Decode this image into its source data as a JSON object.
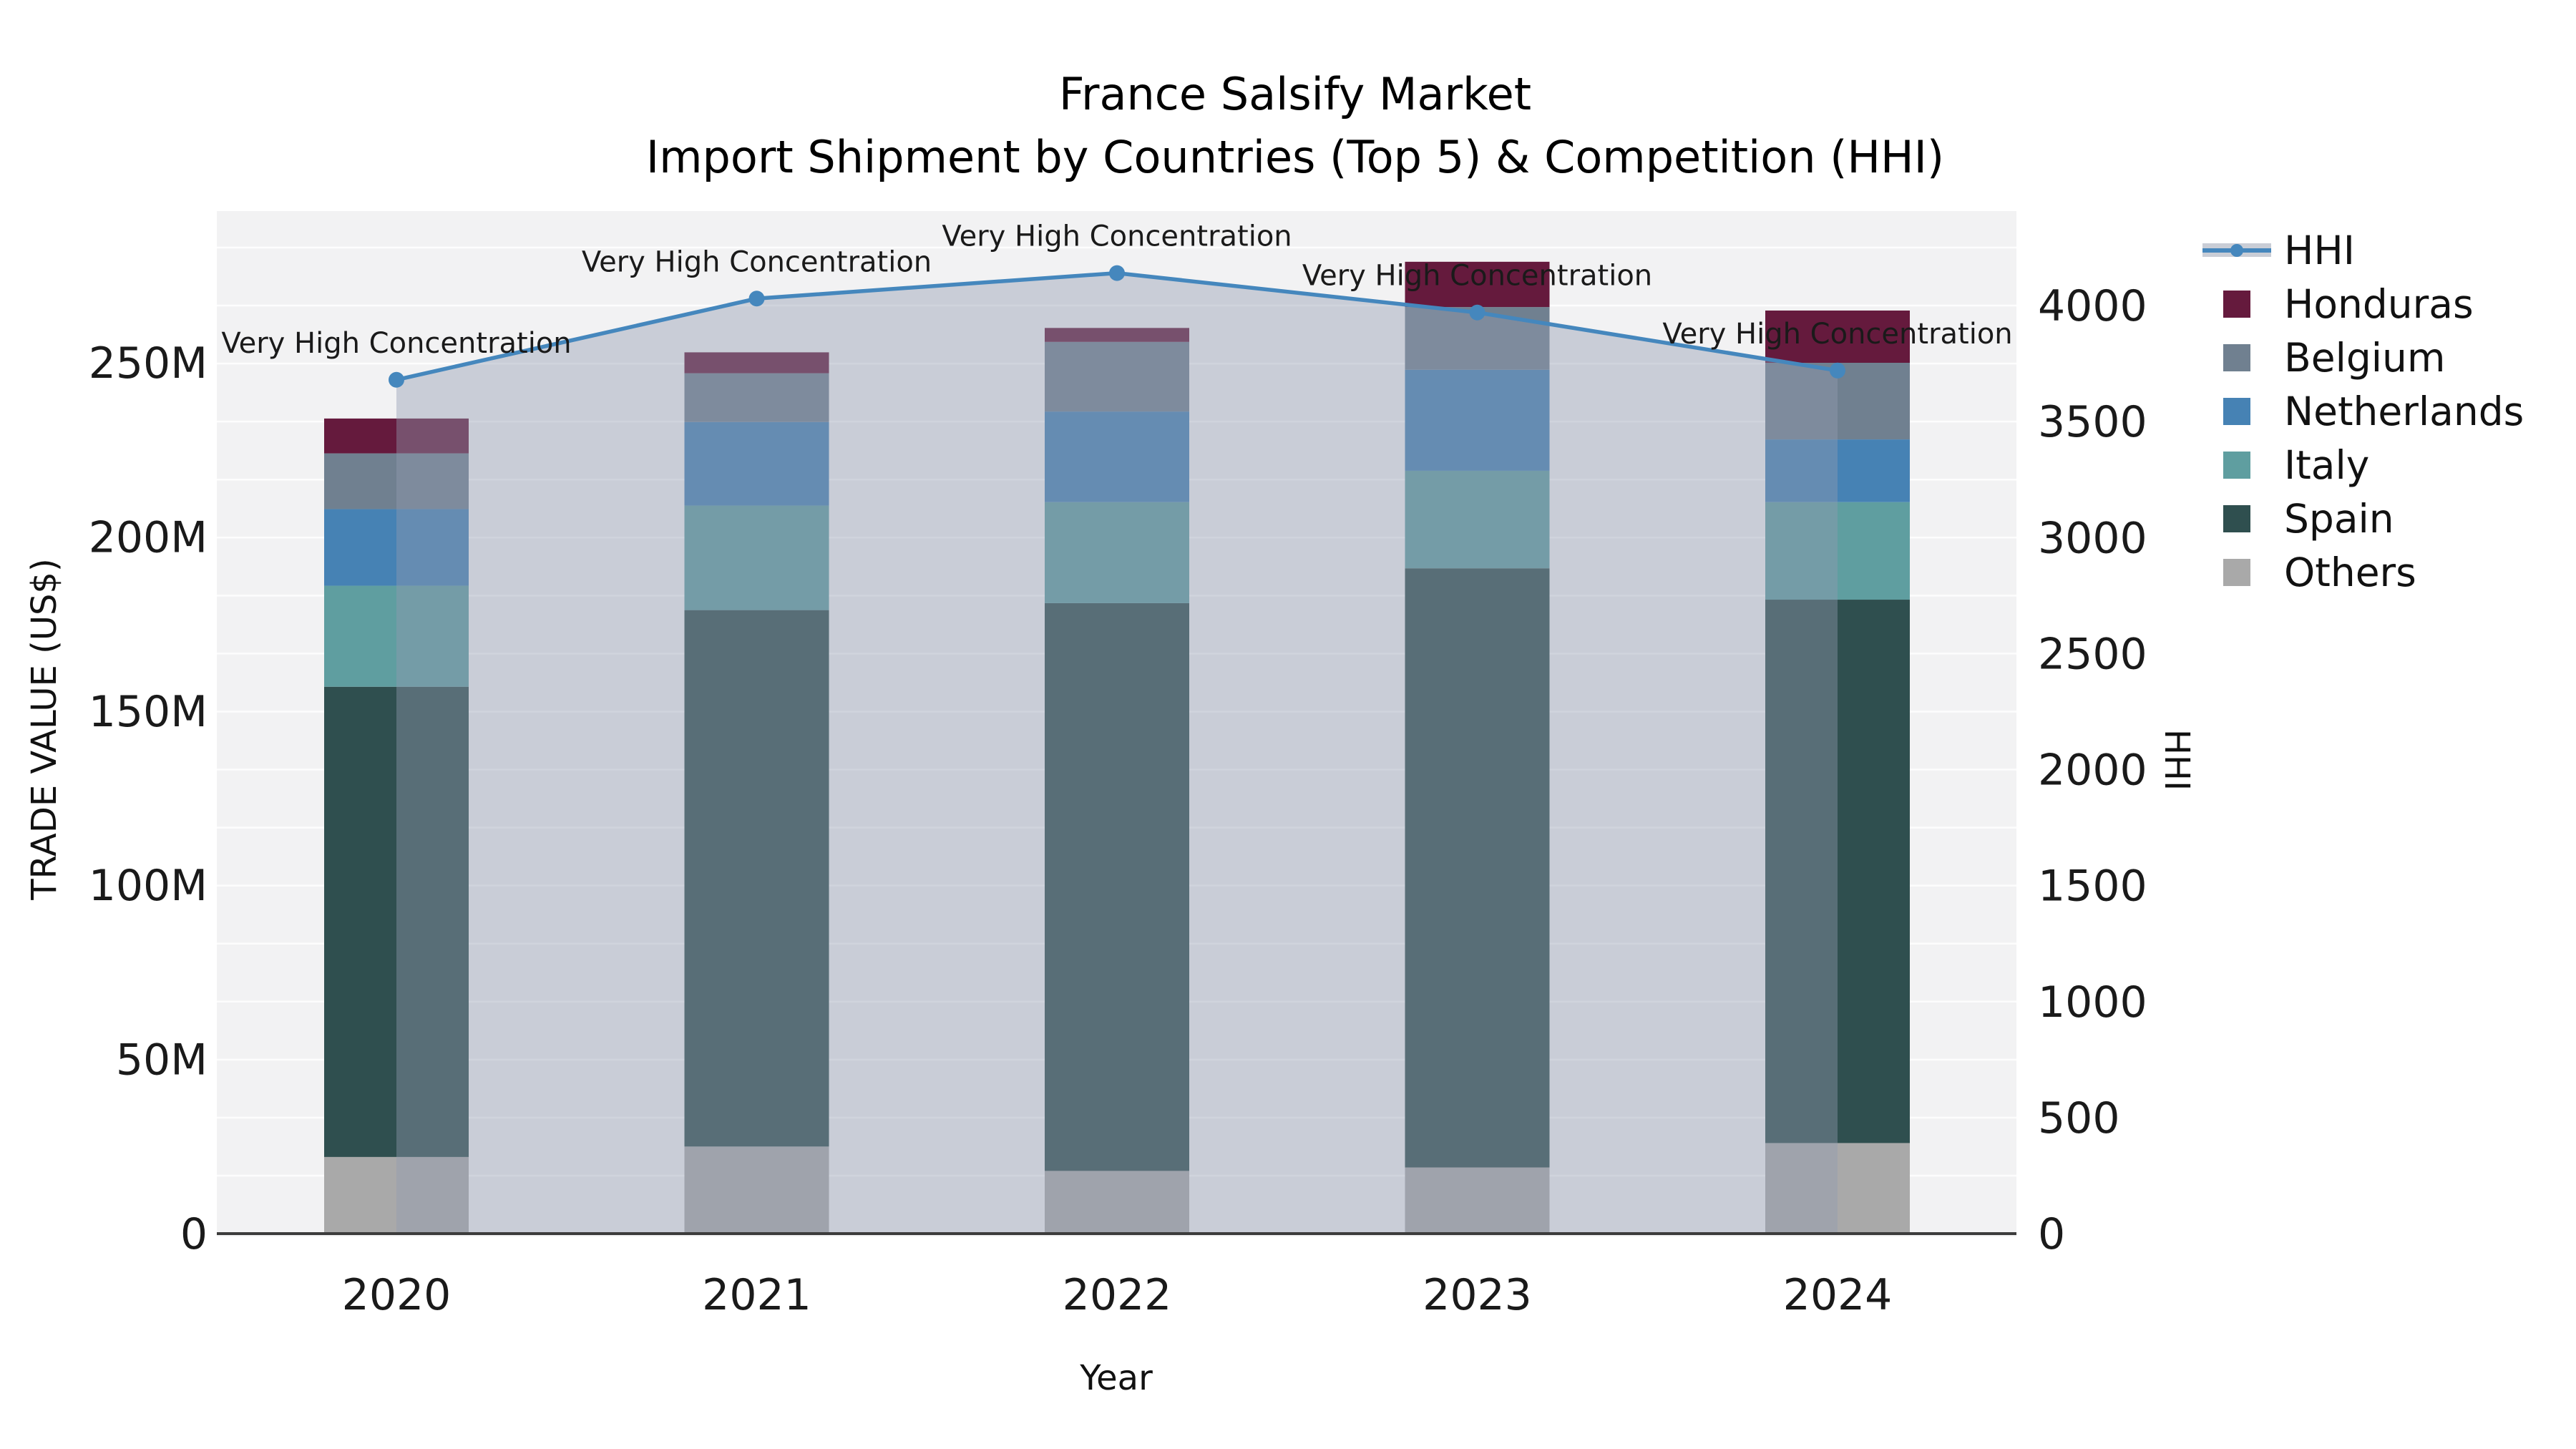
{
  "title": {
    "line1": "France Salsify Market",
    "line2": "Import Shipment by Countries (Top 5) & Competition (HHI)"
  },
  "axes": {
    "x_title": "Year",
    "y_left_title": "TRADE VALUE (US$)",
    "y_right_title": "HHI",
    "y_left_ticks": [
      {
        "value": 0,
        "label": "0"
      },
      {
        "value": 50,
        "label": "50M"
      },
      {
        "value": 100,
        "label": "100M"
      },
      {
        "value": 150,
        "label": "150M"
      },
      {
        "value": 200,
        "label": "200M"
      },
      {
        "value": 250,
        "label": "250M"
      }
    ],
    "y_right_ticks": [
      {
        "value": 0,
        "label": "0"
      },
      {
        "value": 500,
        "label": "500"
      },
      {
        "value": 1000,
        "label": "1000"
      },
      {
        "value": 1500,
        "label": "1500"
      },
      {
        "value": 2000,
        "label": "2000"
      },
      {
        "value": 2500,
        "label": "2500"
      },
      {
        "value": 3000,
        "label": "3000"
      },
      {
        "value": 3500,
        "label": "3500"
      },
      {
        "value": 4000,
        "label": "4000"
      }
    ]
  },
  "chart_data": {
    "type": "bar",
    "stacked": true,
    "categories": [
      "2020",
      "2021",
      "2022",
      "2023",
      "2024"
    ],
    "series": [
      {
        "name": "Others",
        "color": "#a9a9a9",
        "values": [
          22,
          25,
          18,
          19,
          26
        ]
      },
      {
        "name": "Spain",
        "color": "#2f4f4f",
        "values": [
          135,
          154,
          163,
          172,
          156
        ]
      },
      {
        "name": "Italy",
        "color": "#5f9ea0",
        "values": [
          29,
          30,
          29,
          28,
          28
        ]
      },
      {
        "name": "Netherlands",
        "color": "#4682b4",
        "values": [
          22,
          24,
          26,
          29,
          18
        ]
      },
      {
        "name": "Belgium",
        "color": "#708090",
        "values": [
          16,
          14,
          20,
          18,
          22
        ]
      },
      {
        "name": "Honduras",
        "color": "#651a3d",
        "values": [
          10,
          6,
          4,
          13,
          15
        ]
      }
    ],
    "totals": [
      234,
      253,
      260,
      279,
      265
    ],
    "line_series": {
      "name": "HHI",
      "color": "#4587bd",
      "area_color": "rgba(145,155,176,0.42)",
      "axis": "right",
      "values": [
        3680,
        4030,
        4140,
        3970,
        3720
      ]
    },
    "annotations": [
      "Very High Concentration",
      "Very High Concentration",
      "Very High Concentration",
      "Very High Concentration",
      "Very High Concentration"
    ],
    "xlabel": "Year",
    "ylabel_left": "TRADE VALUE (US$)",
    "ylabel_right": "HHI",
    "ylim_left_M": [
      0,
      294
    ],
    "ylim_right": [
      0,
      4400
    ],
    "grid": "horizontal, every 250 HHI, white on light gray panel",
    "legend_position": "right, outside plot"
  },
  "legend": {
    "items": [
      {
        "label": "HHI",
        "swatch": "line",
        "color": "#4587bd"
      },
      {
        "label": "Honduras",
        "swatch": "rect",
        "color": "#651a3d"
      },
      {
        "label": "Belgium",
        "swatch": "rect",
        "color": "#708090"
      },
      {
        "label": "Netherlands",
        "swatch": "rect",
        "color": "#4682b4"
      },
      {
        "label": "Italy",
        "swatch": "rect",
        "color": "#5f9ea0"
      },
      {
        "label": "Spain",
        "swatch": "rect",
        "color": "#2f4f4f"
      },
      {
        "label": "Others",
        "swatch": "rect",
        "color": "#a9a9a9"
      }
    ]
  },
  "colors": {
    "plot_bg": "#f2f2f3",
    "gridline": "#ffffff",
    "baseline": "#3c3c3c",
    "text": "#1a1a1a",
    "accent_line": "#4587bd"
  }
}
